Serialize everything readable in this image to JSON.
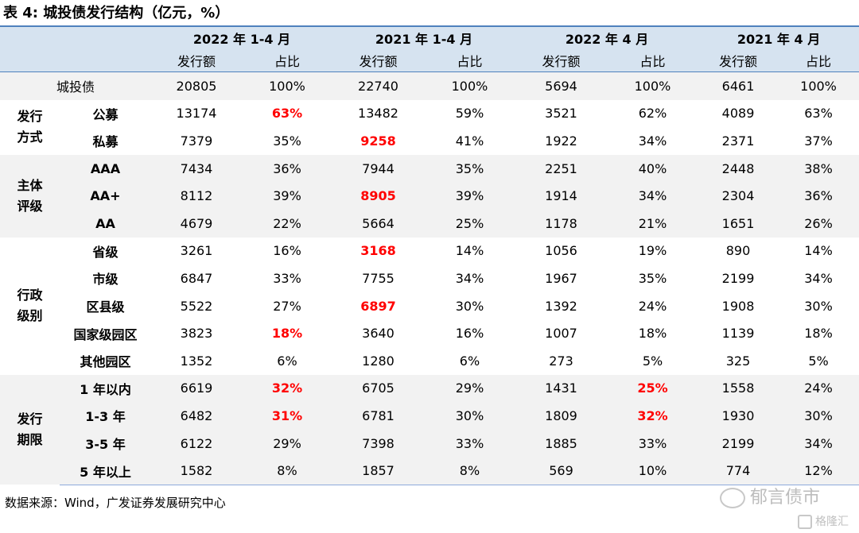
{
  "title": "表 4:  城投债发行结构（亿元，%）",
  "header": {
    "periods": [
      "2022 年 1-4 月",
      "2021 年 1-4 月",
      "2022 年 4 月",
      "2021 年 4 月"
    ],
    "sub": [
      "发行额",
      "占比",
      "发行额",
      "占比",
      "发行额",
      "占比",
      "发行额",
      "占比"
    ]
  },
  "total": {
    "label": "城投债",
    "cells": [
      "20805",
      "100%",
      "22740",
      "100%",
      "5694",
      "100%",
      "6461",
      "100%"
    ]
  },
  "groups": [
    {
      "label": "发行\n方式",
      "rows": [
        {
          "label": "公募",
          "cells": [
            "13174",
            "63%",
            "13482",
            "59%",
            "3521",
            "62%",
            "4089",
            "63%"
          ]
        },
        {
          "label": "私募",
          "cells": [
            "7379",
            "35%",
            "9258",
            "41%",
            "1922",
            "34%",
            "2371",
            "37%"
          ]
        }
      ]
    },
    {
      "label": "主体\n评级",
      "rows": [
        {
          "label": "AAA",
          "cells": [
            "7434",
            "36%",
            "7944",
            "35%",
            "2251",
            "40%",
            "2448",
            "38%"
          ]
        },
        {
          "label": "AA+",
          "cells": [
            "8112",
            "39%",
            "8905",
            "39%",
            "1914",
            "34%",
            "2304",
            "36%"
          ]
        },
        {
          "label": "AA",
          "cells": [
            "4679",
            "22%",
            "5664",
            "25%",
            "1178",
            "21%",
            "1651",
            "26%"
          ]
        }
      ]
    },
    {
      "label": "行政\n级别",
      "rows": [
        {
          "label": "省级",
          "cells": [
            "3261",
            "16%",
            "3168",
            "14%",
            "1056",
            "19%",
            "890",
            "14%"
          ]
        },
        {
          "label": "市级",
          "cells": [
            "6847",
            "33%",
            "7755",
            "34%",
            "1967",
            "35%",
            "2199",
            "34%"
          ]
        },
        {
          "label": "区县级",
          "cells": [
            "5522",
            "27%",
            "6897",
            "30%",
            "1392",
            "24%",
            "1908",
            "30%"
          ]
        },
        {
          "label": "国家级园区",
          "cells": [
            "3823",
            "18%",
            "3640",
            "16%",
            "1007",
            "18%",
            "1139",
            "18%"
          ]
        },
        {
          "label": "其他园区",
          "cells": [
            "1352",
            "6%",
            "1280",
            "6%",
            "273",
            "5%",
            "325",
            "5%"
          ]
        }
      ]
    },
    {
      "label": "发行\n期限",
      "rows": [
        {
          "label": "1 年以内",
          "cells": [
            "6619",
            "32%",
            "6705",
            "29%",
            "1431",
            "25%",
            "1558",
            "24%"
          ]
        },
        {
          "label": "1-3 年",
          "cells": [
            "6482",
            "31%",
            "6781",
            "30%",
            "1809",
            "32%",
            "1930",
            "30%"
          ]
        },
        {
          "label": "3-5 年",
          "cells": [
            "6122",
            "29%",
            "7398",
            "33%",
            "1885",
            "33%",
            "2199",
            "34%"
          ]
        },
        {
          "label": "5 年以上",
          "cells": [
            "1582",
            "8%",
            "1857",
            "8%",
            "569",
            "10%",
            "774",
            "12%"
          ]
        }
      ]
    }
  ],
  "highlights": [
    "1-1",
    "2-2",
    "4-2",
    "6-2",
    "8-2",
    "9-1",
    "11-1",
    "11-5",
    "12-1",
    "12-5"
  ],
  "highlight_color": "#ff0000",
  "header_bg": "#d6e3f0",
  "source": "数据来源：Wind，广发证券发展研究中心",
  "watermark": "郁言债市",
  "watermark2": "格隆汇"
}
